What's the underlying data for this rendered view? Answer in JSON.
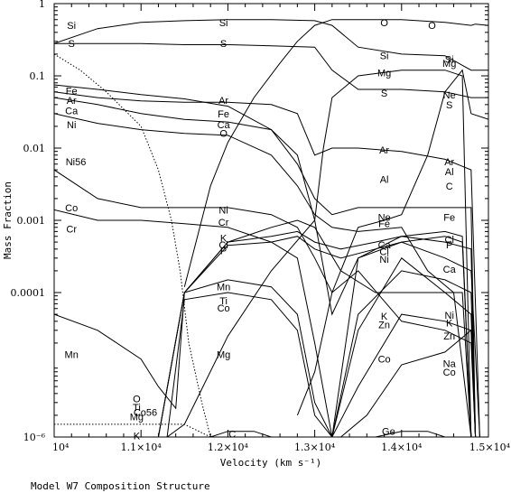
{
  "chart_data": {
    "type": "line",
    "title": "",
    "xlabel": "Velocity (km s⁻¹)",
    "ylabel": "Mass Fraction",
    "caption": "Model W7 Composition Structure",
    "x_scale": "linear",
    "y_scale": "log",
    "xlim": [
      10000,
      15000
    ],
    "ylim": [
      1e-06,
      1
    ],
    "x_ticks": [
      10000,
      11000,
      12000,
      13000,
      14000,
      15000
    ],
    "x_tick_labels": [
      "10⁴",
      "1.1×10⁴",
      "1.2×10⁴",
      "1.3×10⁴",
      "1.4×10⁴",
      "1.5×10⁴"
    ],
    "y_ticks": [
      1e-06,
      0.0001,
      0.001,
      0.01,
      0.1,
      1
    ],
    "y_tick_labels": [
      "10⁻⁶",
      "0.0001",
      "0.001",
      "0.01",
      "0.1",
      "1"
    ],
    "grid": false,
    "series": [
      {
        "name": "Si",
        "style": "solid",
        "x": [
          10000,
          10500,
          11000,
          11500,
          12000,
          12500,
          13000,
          13200,
          13500,
          14000,
          14500,
          14800,
          15000
        ],
        "y": [
          0.28,
          0.45,
          0.55,
          0.58,
          0.6,
          0.6,
          0.58,
          0.5,
          0.25,
          0.2,
          0.19,
          0.12,
          0.12
        ]
      },
      {
        "name": "S",
        "style": "solid",
        "x": [
          10000,
          10500,
          11000,
          11500,
          12000,
          12500,
          13000,
          13200,
          13500,
          14000,
          14500,
          14800,
          15000
        ],
        "y": [
          0.28,
          0.28,
          0.28,
          0.27,
          0.27,
          0.26,
          0.25,
          0.12,
          0.065,
          0.065,
          0.06,
          0.05,
          0.05
        ]
      },
      {
        "name": "O",
        "style": "solid",
        "x": [
          11500,
          11800,
          12000,
          12300,
          12600,
          12800,
          13000,
          13200,
          13500,
          14000,
          14500,
          14800,
          14850,
          15000
        ],
        "y": [
          0.00012,
          0.003,
          0.012,
          0.05,
          0.15,
          0.3,
          0.5,
          0.6,
          0.6,
          0.6,
          0.55,
          0.5,
          0.52,
          0.5
        ]
      },
      {
        "name": "Mg",
        "style": "solid",
        "x": [
          11300,
          11500,
          12000,
          12500,
          13000,
          13100,
          13200,
          13500,
          14000,
          14500,
          14700,
          14800
        ],
        "y": [
          1e-06,
          1.5e-06,
          2.5e-05,
          0.0002,
          0.001,
          0.01,
          0.05,
          0.1,
          0.12,
          0.12,
          0.1,
          1e-06
        ]
      },
      {
        "name": "Ne",
        "style": "solid",
        "x": [
          12800,
          13000,
          13200,
          13500,
          13800,
          14000,
          14300,
          14500,
          14700,
          14800,
          15000
        ],
        "y": [
          2e-06,
          8e-06,
          0.0001,
          0.0008,
          0.001,
          0.0012,
          0.008,
          0.06,
          0.12,
          0.03,
          0.025
        ]
      },
      {
        "name": "Fe",
        "style": "solid",
        "x": [
          10000,
          10500,
          11000,
          11500,
          12000,
          12500,
          12800,
          13000,
          13200,
          13500,
          14000,
          14500,
          14800,
          14850
        ],
        "y": [
          0.075,
          0.065,
          0.055,
          0.048,
          0.038,
          0.018,
          0.006,
          0.002,
          0.0012,
          0.0015,
          0.0015,
          0.0015,
          0.0015,
          1e-06
        ]
      },
      {
        "name": "Ar",
        "style": "solid",
        "x": [
          10000,
          10500,
          11000,
          11500,
          12000,
          12500,
          12800,
          13000,
          13200,
          13500,
          14000,
          14500,
          14800,
          14900
        ],
        "y": [
          0.06,
          0.05,
          0.045,
          0.043,
          0.043,
          0.04,
          0.03,
          0.008,
          0.01,
          0.01,
          0.009,
          0.007,
          0.005,
          1e-06
        ]
      },
      {
        "name": "Ca",
        "style": "solid",
        "x": [
          10000,
          10500,
          11000,
          11500,
          12000,
          12500,
          12800,
          13000,
          13200,
          13500,
          14000,
          14500,
          14800,
          14900
        ],
        "y": [
          0.05,
          0.04,
          0.03,
          0.025,
          0.023,
          0.018,
          0.008,
          0.001,
          5e-05,
          0.0003,
          0.0005,
          0.0003,
          0.0002,
          1e-06
        ]
      },
      {
        "name": "Ni",
        "style": "solid",
        "x": [
          10000,
          10500,
          11000,
          11500,
          12000,
          12500,
          12800,
          13000,
          13200,
          13500,
          14000,
          14300,
          14600,
          14800
        ],
        "y": [
          0.03,
          0.022,
          0.018,
          0.016,
          0.015,
          0.008,
          0.003,
          0.0012,
          0.0008,
          0.0007,
          0.0008,
          0.0002,
          0.0001,
          1e-06
        ]
      },
      {
        "name": "Ni56",
        "style": "dotted",
        "x": [
          10000,
          10300,
          10600,
          11000,
          11200,
          11350,
          11450,
          11550,
          11700,
          11800
        ],
        "y": [
          0.2,
          0.12,
          0.06,
          0.02,
          0.005,
          0.001,
          0.0002,
          2e-05,
          3e-06,
          1e-06
        ]
      },
      {
        "name": "Co56",
        "style": "dotted",
        "x": [
          10000,
          10500,
          11000,
          11500,
          11800
        ],
        "y": [
          1.5e-06,
          1.5e-06,
          1.5e-06,
          1.5e-06,
          1e-06
        ]
      },
      {
        "name": "Co",
        "style": "solid",
        "x": [
          10000,
          10500,
          11000,
          11500,
          12000,
          12500,
          12800,
          13000,
          13200,
          13500,
          14000,
          14500,
          14800,
          14850
        ],
        "y": [
          0.005,
          0.002,
          0.0015,
          0.0015,
          0.0015,
          0.0012,
          0.0008,
          0.0003,
          0.0001,
          0.0002,
          4e-05,
          3e-05,
          2e-05,
          1e-06
        ]
      },
      {
        "name": "Cr",
        "style": "solid",
        "x": [
          10000,
          10500,
          11000,
          11500,
          12000,
          12500,
          12800,
          13000,
          13200,
          13500,
          14000,
          14500,
          14800,
          14850
        ],
        "y": [
          0.0014,
          0.001,
          0.001,
          0.0009,
          0.0008,
          0.0005,
          0.0003,
          2e-05,
          1e-06,
          0.0003,
          0.0006,
          0.0005,
          0.0004,
          1e-06
        ]
      },
      {
        "name": "K",
        "style": "solid",
        "x": [
          11200,
          11500,
          12000,
          12500,
          12800,
          13000,
          13300,
          13700,
          14000,
          14500,
          14700,
          14800
        ],
        "y": [
          1e-06,
          0.0001,
          0.0005,
          0.0008,
          0.001,
          0.0008,
          0.0002,
          0.0001,
          0.0001,
          0.0001,
          0.0001,
          1e-06
        ]
      },
      {
        "name": "Cl",
        "style": "solid",
        "x": [
          11200,
          11500,
          12000,
          12500,
          12800,
          13000,
          13300,
          13700,
          14000,
          14500,
          14700,
          14800
        ],
        "y": [
          1e-06,
          0.0001,
          0.0005,
          0.0006,
          0.0007,
          0.0005,
          0.0004,
          0.0005,
          0.0006,
          0.0007,
          0.0006,
          1e-06
        ]
      },
      {
        "name": "P",
        "style": "solid",
        "x": [
          11200,
          11500,
          12000,
          12500,
          12800,
          13000,
          13300,
          13700,
          14000,
          14500,
          14700,
          14800
        ],
        "y": [
          1e-06,
          0.0001,
          0.00045,
          0.0005,
          0.0006,
          0.0004,
          0.0003,
          0.0004,
          0.0005,
          0.0006,
          0.0005,
          1e-06
        ]
      },
      {
        "name": "Mn",
        "style": "solid",
        "x": [
          10000,
          10500,
          11000,
          11200,
          11400,
          11500,
          12000,
          12500,
          12800,
          13000,
          13200,
          13500,
          14000,
          14500,
          14800,
          14850
        ],
        "y": [
          5e-05,
          3e-05,
          1.2e-05,
          5e-06,
          2.5e-06,
          0.0001,
          0.00015,
          0.00012,
          5e-05,
          3e-06,
          1e-06,
          5e-05,
          0.0002,
          0.00015,
          0.0001,
          1e-06
        ]
      },
      {
        "name": "Ti",
        "style": "solid",
        "x": [
          11300,
          11500,
          12000,
          12500,
          12800,
          13000,
          13200,
          13500,
          14000,
          14500,
          14800,
          14850
        ],
        "y": [
          1e-06,
          8e-05,
          0.0001,
          8e-05,
          3e-05,
          2e-06,
          1e-06,
          3e-05,
          0.0003,
          0.0001,
          5e-05,
          1e-06
        ]
      },
      {
        "name": "Zn",
        "style": "solid",
        "x": [
          13200,
          13500,
          14000,
          14500,
          14800,
          14850
        ],
        "y": [
          1e-06,
          5e-06,
          5e-05,
          4e-05,
          3e-05,
          1e-06
        ]
      },
      {
        "name": "Na",
        "style": "solid",
        "x": [
          13300,
          13600,
          14000,
          14500,
          14800,
          14850
        ],
        "y": [
          1e-06,
          2e-06,
          1e-05,
          1.5e-05,
          3e-05,
          1e-06
        ]
      },
      {
        "name": "Ge",
        "style": "solid",
        "x": [
          13700,
          14000,
          14300,
          14500
        ],
        "y": [
          1e-06,
          1.2e-06,
          1.2e-06,
          1e-06
        ]
      },
      {
        "name": "C",
        "style": "solid",
        "x": [
          11800,
          12000,
          12300,
          12500
        ],
        "y": [
          1e-06,
          1.2e-06,
          1.2e-06,
          1e-06
        ]
      }
    ],
    "curve_labels": [
      {
        "text": "Si",
        "x": 10200,
        "y": 0.5
      },
      {
        "text": "Si",
        "x": 11950,
        "y": 0.55
      },
      {
        "text": "O",
        "x": 13800,
        "y": 0.55
      },
      {
        "text": "O",
        "x": 14350,
        "y": 0.5
      },
      {
        "text": "S",
        "x": 10200,
        "y": 0.28
      },
      {
        "text": "S",
        "x": 11950,
        "y": 0.28
      },
      {
        "text": "Si",
        "x": 13800,
        "y": 0.19
      },
      {
        "text": "Si",
        "x": 14550,
        "y": 0.17
      },
      {
        "text": "Mg",
        "x": 13800,
        "y": 0.11
      },
      {
        "text": "Mg",
        "x": 14550,
        "y": 0.15
      },
      {
        "text": "S",
        "x": 13800,
        "y": 0.058
      },
      {
        "text": "Ne",
        "x": 14550,
        "y": 0.055
      },
      {
        "text": "S",
        "x": 14550,
        "y": 0.04
      },
      {
        "text": "Fe",
        "x": 10200,
        "y": 0.062
      },
      {
        "text": "Ar",
        "x": 10200,
        "y": 0.046
      },
      {
        "text": "Ar",
        "x": 11950,
        "y": 0.046
      },
      {
        "text": "Ca",
        "x": 10200,
        "y": 0.033
      },
      {
        "text": "Fe",
        "x": 11950,
        "y": 0.03
      },
      {
        "text": "Ni",
        "x": 10200,
        "y": 0.021
      },
      {
        "text": "Ca",
        "x": 11950,
        "y": 0.021
      },
      {
        "text": "O",
        "x": 11950,
        "y": 0.016
      },
      {
        "text": "Ar",
        "x": 13800,
        "y": 0.0095
      },
      {
        "text": "Ni56",
        "x": 10250,
        "y": 0.0065
      },
      {
        "text": "Ar",
        "x": 14550,
        "y": 0.0065
      },
      {
        "text": "Al",
        "x": 14550,
        "y": 0.0047
      },
      {
        "text": "Al",
        "x": 13800,
        "y": 0.0037
      },
      {
        "text": "C",
        "x": 14550,
        "y": 0.003
      },
      {
        "text": "Co",
        "x": 10200,
        "y": 0.0015
      },
      {
        "text": "Ni",
        "x": 11950,
        "y": 0.0014
      },
      {
        "text": "Ne",
        "x": 13800,
        "y": 0.0011
      },
      {
        "text": "Fe",
        "x": 14550,
        "y": 0.0011
      },
      {
        "text": "Cr",
        "x": 10200,
        "y": 0.00076
      },
      {
        "text": "Cr",
        "x": 11950,
        "y": 0.00095
      },
      {
        "text": "Fe",
        "x": 13800,
        "y": 0.0009
      },
      {
        "text": "K",
        "x": 11950,
        "y": 0.00057
      },
      {
        "text": "Cl",
        "x": 14550,
        "y": 0.00055
      },
      {
        "text": "Cl",
        "x": 11950,
        "y": 0.00046
      },
      {
        "text": "Ca",
        "x": 13800,
        "y": 0.00046
      },
      {
        "text": "P",
        "x": 14550,
        "y": 0.00046
      },
      {
        "text": "P",
        "x": 11950,
        "y": 0.00038
      },
      {
        "text": "Cl",
        "x": 13800,
        "y": 0.00037
      },
      {
        "text": "Ni",
        "x": 13800,
        "y": 0.00029
      },
      {
        "text": "Ca",
        "x": 14550,
        "y": 0.00021
      },
      {
        "text": "Mn",
        "x": 11950,
        "y": 0.00012
      },
      {
        "text": "Ti",
        "x": 11950,
        "y": 7.7e-05
      },
      {
        "text": "Co",
        "x": 11950,
        "y": 6.1e-05
      },
      {
        "text": "K",
        "x": 13800,
        "y": 4.7e-05
      },
      {
        "text": "Ni",
        "x": 14550,
        "y": 4.9e-05
      },
      {
        "text": "Zn",
        "x": 13800,
        "y": 3.6e-05
      },
      {
        "text": "K",
        "x": 14550,
        "y": 3.8e-05
      },
      {
        "text": "Zn",
        "x": 14550,
        "y": 2.5e-05
      },
      {
        "text": "Mn",
        "x": 10200,
        "y": 1.4e-05
      },
      {
        "text": "Mg",
        "x": 11950,
        "y": 1.4e-05
      },
      {
        "text": "Co",
        "x": 13800,
        "y": 1.2e-05
      },
      {
        "text": "Na",
        "x": 14550,
        "y": 1.05e-05
      },
      {
        "text": "Co",
        "x": 14550,
        "y": 7.9e-06
      },
      {
        "text": "O",
        "x": 10950,
        "y": 3.4e-06
      },
      {
        "text": "Ti",
        "x": 10950,
        "y": 2.6e-06
      },
      {
        "text": "Co56",
        "x": 11050,
        "y": 2.2e-06
      },
      {
        "text": "Mg",
        "x": 10950,
        "y": 1.9e-06
      },
      {
        "text": "K",
        "x": 10950,
        "y": 1.05e-06
      },
      {
        "text": "C",
        "x": 12050,
        "y": 1.1e-06
      },
      {
        "text": "Ge",
        "x": 13850,
        "y": 1.2e-06
      }
    ]
  }
}
